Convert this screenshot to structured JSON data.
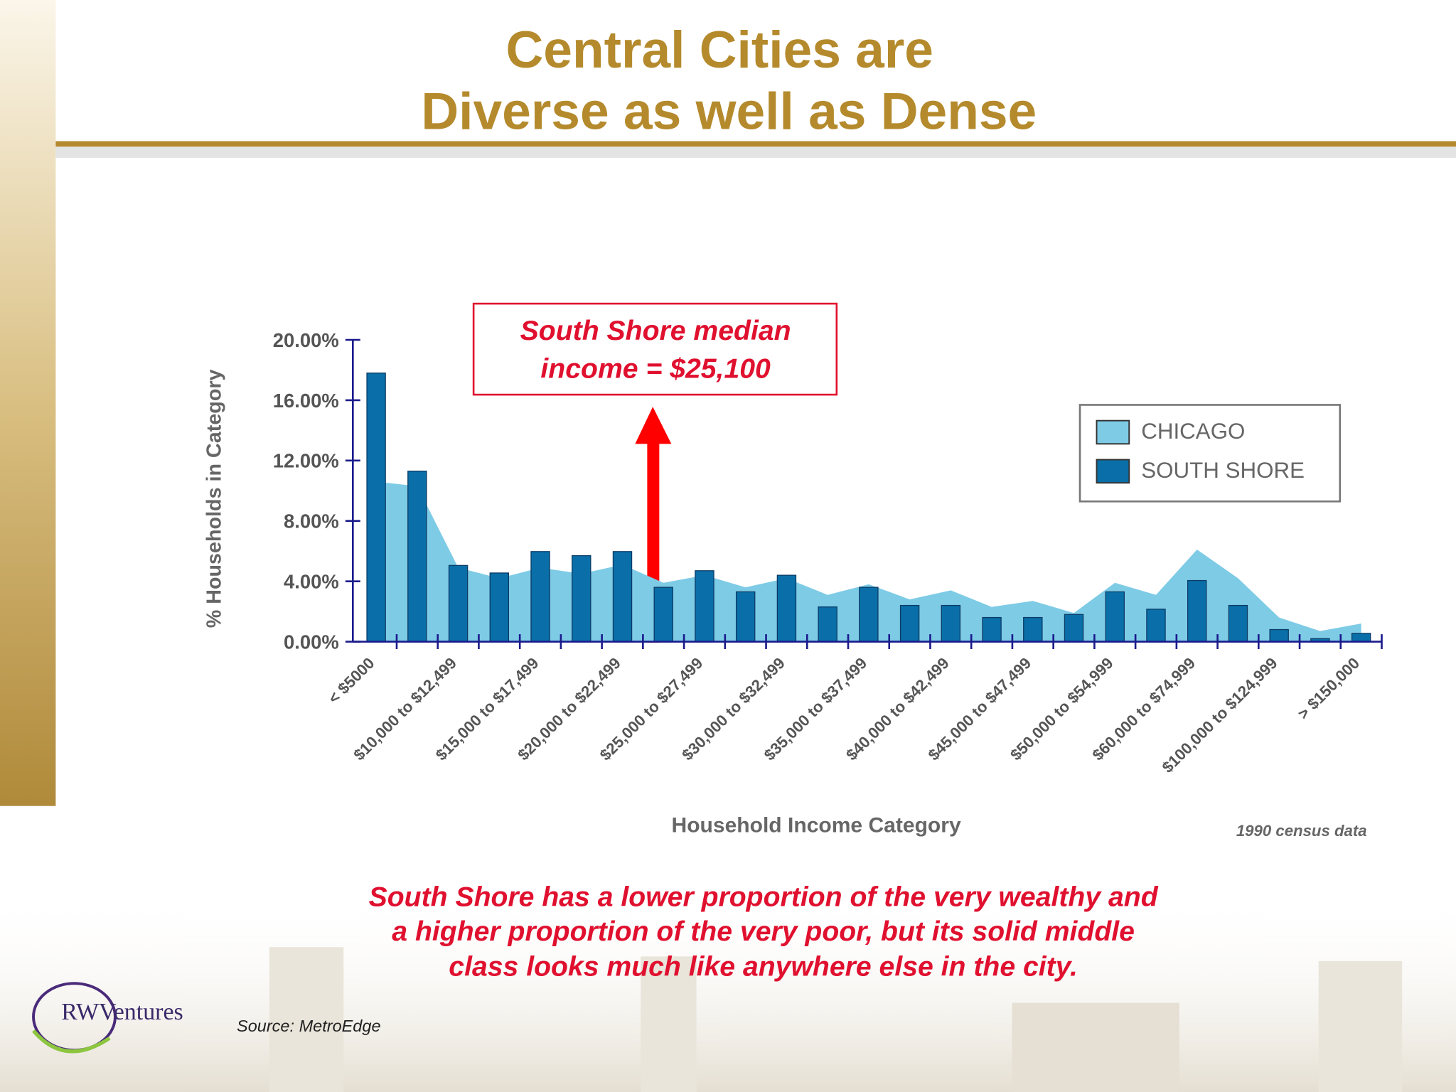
{
  "chart_data": {
    "type": "bar",
    "title": [
      "Central Cities are",
      "Diverse as well as Dense"
    ],
    "x_label": "Household Income Category",
    "y_label": "% Households in Category",
    "note": "1990 census data",
    "annotation": [
      "South Shore median",
      "income = $25,100"
    ],
    "caption": [
      "South Shore has a lower proportion of the very wealthy and",
      "a higher proportion of the very poor, but its solid middle",
      "class looks much like anywhere else in the city."
    ],
    "source": "Source:  MetroEdge",
    "logo": "RWVentures",
    "categories": [
      "< $5000",
      null,
      "$10,000 to $12,499",
      null,
      "$15,000 to $17,499",
      null,
      "$20,000 to $22,499",
      null,
      "$25,000 to $27,499",
      null,
      "$30,000 to $32,499",
      null,
      "$35,000 to $37,499",
      null,
      "$40,000 to $42,499",
      null,
      "$45,000 to $47,499",
      null,
      "$50,000 to $54,999",
      null,
      "$60,000 to $74,999",
      null,
      "$100,000 to $124,999",
      null,
      "> $150,000"
    ],
    "series": [
      {
        "name": "CHICAGO",
        "color": "#7ecbe6",
        "type": "area",
        "values": [
          10.6,
          10.3,
          4.9,
          4.2,
          4.9,
          4.5,
          5.1,
          3.9,
          4.4,
          3.6,
          4.2,
          3.1,
          3.8,
          2.8,
          3.4,
          2.3,
          2.7,
          1.9,
          3.9,
          3.1,
          6.1,
          4.2,
          1.6,
          0.7,
          1.2
        ]
      },
      {
        "name": "SOUTH SHORE",
        "color": "#0a6fa8",
        "type": "bar",
        "values": [
          17.8,
          11.3,
          5.05,
          4.55,
          5.97,
          5.7,
          5.97,
          3.6,
          4.7,
          3.3,
          4.4,
          2.3,
          3.6,
          2.4,
          2.4,
          1.6,
          1.6,
          1.8,
          3.3,
          2.15,
          4.05,
          2.4,
          0.8,
          0.2,
          0.55
        ]
      }
    ],
    "ylim": [
      0,
      20
    ],
    "yticks": [
      {
        "value": 0,
        "label": "0.00%"
      },
      {
        "value": 4,
        "label": "4.00%"
      },
      {
        "value": 8,
        "label": "8.00%"
      },
      {
        "value": 12,
        "label": "12.00%"
      },
      {
        "value": 16,
        "label": "16.00%"
      },
      {
        "value": 20,
        "label": "20.00%"
      }
    ],
    "legend": "upper right"
  }
}
